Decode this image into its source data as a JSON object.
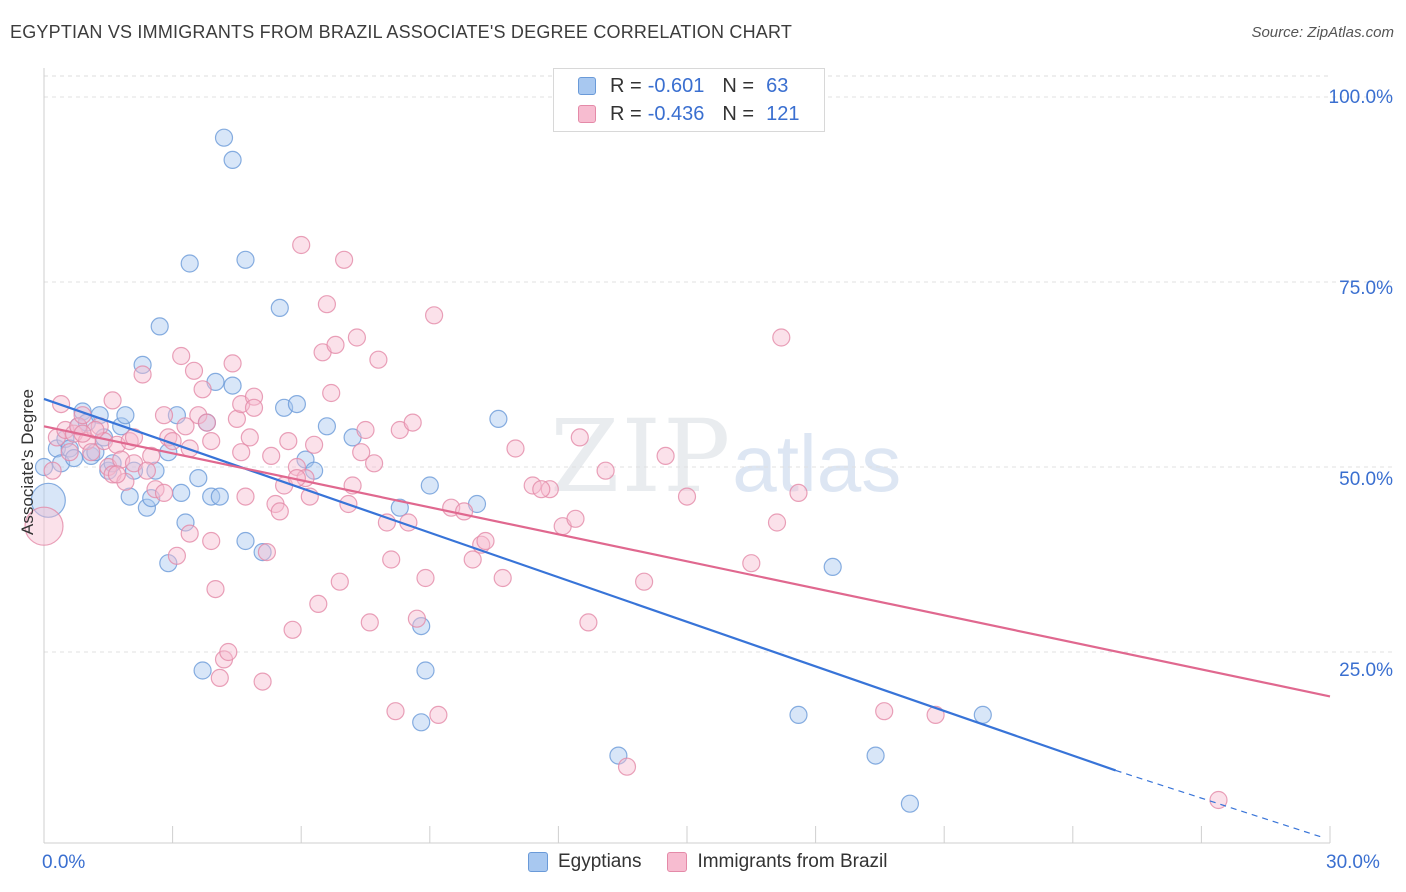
{
  "title": "EGYPTIAN VS IMMIGRANTS FROM BRAZIL ASSOCIATE'S DEGREE CORRELATION CHART",
  "source": "Source: ZipAtlas.com",
  "watermark": {
    "zip": "ZIP",
    "atlas": "atlas"
  },
  "legend": {
    "rows": [
      {
        "r_label": "R =",
        "r_value": "-0.601",
        "n_label": "N =",
        "n_value": "63",
        "color": "#a8c8f0",
        "border": "#6a9ad8"
      },
      {
        "r_label": "R =",
        "r_value": "-0.436",
        "n_label": "N =",
        "n_value": "121",
        "color": "#f7bcd0",
        "border": "#e48aa8"
      }
    ]
  },
  "bottom_legend": [
    "Egyptians",
    "Immigrants from Brazil"
  ],
  "chart_data": {
    "type": "scatter",
    "title": "EGYPTIAN VS IMMIGRANTS FROM BRAZIL ASSOCIATE'S DEGREE CORRELATION CHART",
    "xlabel": "",
    "ylabel": "Associate's Degree",
    "xlim": [
      0,
      30
    ],
    "ylim": [
      0,
      105
    ],
    "x_ticks": [
      "0.0%",
      "30.0%"
    ],
    "y_ticks": [
      {
        "value": 100,
        "label": "100.0%"
      },
      {
        "value": 75,
        "label": "75.0%"
      },
      {
        "value": 50,
        "label": "50.0%"
      },
      {
        "value": 25,
        "label": "25.0%"
      }
    ],
    "grid": true,
    "legend_position": "top-center",
    "series": [
      {
        "name": "Egyptians",
        "color": "#a8c8f0",
        "stroke": "#6a9ad8",
        "trend": {
          "x0": 0,
          "y0": 59.2,
          "x1": 25.0,
          "y1": 9.0,
          "dash_to_x": 29.8,
          "dash_to_y": 0.0,
          "color": "#3874d8"
        },
        "points": [
          [
            0.1,
            45.5
          ],
          [
            0.3,
            52.5
          ],
          [
            0.4,
            50.5
          ],
          [
            0.5,
            53.8
          ],
          [
            0.6,
            52.5
          ],
          [
            0.7,
            51.2
          ],
          [
            0.8,
            55.5
          ],
          [
            0.9,
            57.5
          ],
          [
            1.0,
            56.0
          ],
          [
            1.1,
            51.5
          ],
          [
            1.2,
            52.0
          ],
          [
            1.3,
            57.0
          ],
          [
            1.4,
            54.0
          ],
          [
            1.5,
            49.5
          ],
          [
            1.6,
            50.5
          ],
          [
            1.8,
            55.5
          ],
          [
            1.9,
            57.0
          ],
          [
            2.0,
            46.0
          ],
          [
            2.1,
            49.5
          ],
          [
            2.3,
            63.8
          ],
          [
            2.4,
            44.5
          ],
          [
            2.5,
            45.8
          ],
          [
            2.6,
            49.5
          ],
          [
            2.7,
            69.0
          ],
          [
            2.9,
            52.0
          ],
          [
            2.9,
            37.0
          ],
          [
            3.1,
            57.0
          ],
          [
            3.2,
            46.5
          ],
          [
            3.3,
            42.5
          ],
          [
            3.4,
            77.5
          ],
          [
            3.6,
            48.5
          ],
          [
            3.7,
            22.5
          ],
          [
            3.8,
            56.0
          ],
          [
            3.9,
            46.0
          ],
          [
            4.0,
            61.5
          ],
          [
            4.1,
            46.0
          ],
          [
            4.2,
            94.5
          ],
          [
            4.4,
            91.5
          ],
          [
            4.4,
            61.0
          ],
          [
            4.7,
            78.0
          ],
          [
            4.7,
            40.0
          ],
          [
            5.1,
            38.5
          ],
          [
            5.5,
            71.5
          ],
          [
            5.6,
            58.0
          ],
          [
            5.9,
            58.5
          ],
          [
            6.1,
            51.0
          ],
          [
            6.3,
            49.5
          ],
          [
            6.6,
            55.5
          ],
          [
            7.2,
            54.0
          ],
          [
            8.3,
            44.5
          ],
          [
            8.8,
            15.5
          ],
          [
            8.8,
            28.5
          ],
          [
            8.9,
            22.5
          ],
          [
            9.0,
            47.5
          ],
          [
            10.1,
            45.0
          ],
          [
            10.6,
            56.5
          ],
          [
            13.4,
            11.0
          ],
          [
            17.6,
            16.5
          ],
          [
            18.4,
            36.5
          ],
          [
            19.4,
            11.0
          ],
          [
            20.2,
            4.5
          ],
          [
            21.9,
            16.5
          ],
          [
            0.0,
            50.0
          ]
        ]
      },
      {
        "name": "Immigrants from Brazil",
        "color": "#f7bcd0",
        "stroke": "#e48aa8",
        "trend": {
          "x0": 0,
          "y0": 55.5,
          "x1": 30,
          "y1": 19.0,
          "color": "#e0688f"
        },
        "points": [
          [
            0.0,
            42.0
          ],
          [
            0.2,
            49.5
          ],
          [
            0.3,
            54.0
          ],
          [
            0.4,
            58.5
          ],
          [
            0.5,
            55.0
          ],
          [
            0.6,
            52.0
          ],
          [
            0.7,
            54.5
          ],
          [
            0.8,
            55.5
          ],
          [
            0.9,
            57.0
          ],
          [
            1.0,
            53.5
          ],
          [
            1.1,
            52.0
          ],
          [
            1.3,
            55.5
          ],
          [
            1.4,
            53.5
          ],
          [
            1.5,
            50.0
          ],
          [
            1.6,
            49.0
          ],
          [
            1.7,
            53.0
          ],
          [
            1.8,
            51.0
          ],
          [
            1.9,
            48.0
          ],
          [
            2.0,
            53.5
          ],
          [
            2.1,
            50.5
          ],
          [
            2.3,
            62.5
          ],
          [
            2.5,
            51.5
          ],
          [
            2.6,
            47.0
          ],
          [
            2.8,
            57.0
          ],
          [
            2.9,
            54.0
          ],
          [
            3.0,
            53.5
          ],
          [
            3.1,
            38.0
          ],
          [
            3.2,
            65.0
          ],
          [
            3.3,
            55.5
          ],
          [
            3.4,
            52.5
          ],
          [
            3.5,
            63.0
          ],
          [
            3.6,
            57.0
          ],
          [
            3.7,
            60.5
          ],
          [
            3.8,
            56.0
          ],
          [
            3.9,
            40.0
          ],
          [
            4.0,
            33.5
          ],
          [
            4.1,
            21.5
          ],
          [
            4.2,
            24.0
          ],
          [
            4.3,
            25.0
          ],
          [
            4.4,
            64.0
          ],
          [
            4.5,
            56.5
          ],
          [
            4.6,
            58.5
          ],
          [
            4.7,
            46.0
          ],
          [
            4.8,
            54.0
          ],
          [
            4.9,
            59.5
          ],
          [
            5.1,
            21.0
          ],
          [
            5.2,
            38.5
          ],
          [
            5.3,
            51.5
          ],
          [
            5.4,
            45.0
          ],
          [
            5.5,
            44.0
          ],
          [
            5.7,
            53.5
          ],
          [
            5.8,
            28.0
          ],
          [
            5.9,
            50.0
          ],
          [
            6.0,
            80.0
          ],
          [
            6.1,
            48.5
          ],
          [
            6.2,
            46.0
          ],
          [
            6.4,
            31.5
          ],
          [
            6.5,
            65.5
          ],
          [
            6.6,
            72.0
          ],
          [
            6.7,
            60.0
          ],
          [
            6.8,
            66.5
          ],
          [
            6.9,
            34.5
          ],
          [
            7.0,
            78.0
          ],
          [
            7.2,
            47.5
          ],
          [
            7.3,
            67.5
          ],
          [
            7.4,
            52.0
          ],
          [
            7.5,
            55.0
          ],
          [
            7.6,
            29.0
          ],
          [
            7.8,
            64.5
          ],
          [
            8.0,
            42.5
          ],
          [
            8.1,
            37.5
          ],
          [
            8.2,
            17.0
          ],
          [
            8.3,
            55.0
          ],
          [
            8.5,
            42.5
          ],
          [
            8.7,
            29.5
          ],
          [
            8.9,
            35.0
          ],
          [
            9.1,
            70.5
          ],
          [
            9.2,
            16.5
          ],
          [
            9.5,
            44.5
          ],
          [
            10.0,
            37.5
          ],
          [
            10.2,
            39.5
          ],
          [
            10.3,
            40.0
          ],
          [
            10.7,
            35.0
          ],
          [
            11.0,
            52.5
          ],
          [
            11.4,
            47.5
          ],
          [
            11.8,
            47.0
          ],
          [
            12.1,
            42.0
          ],
          [
            12.4,
            43.0
          ],
          [
            12.5,
            54.0
          ],
          [
            12.7,
            29.0
          ],
          [
            13.1,
            49.5
          ],
          [
            13.6,
            9.5
          ],
          [
            14.0,
            34.5
          ],
          [
            14.5,
            51.5
          ],
          [
            15.0,
            46.0
          ],
          [
            16.5,
            37.0
          ],
          [
            17.1,
            42.5
          ],
          [
            17.2,
            67.5
          ],
          [
            17.6,
            46.5
          ],
          [
            19.6,
            17.0
          ],
          [
            20.8,
            16.5
          ],
          [
            27.4,
            5.0
          ],
          [
            1.2,
            55.0
          ],
          [
            2.8,
            46.5
          ],
          [
            3.4,
            41.0
          ],
          [
            4.9,
            58.0
          ],
          [
            5.6,
            47.5
          ],
          [
            6.3,
            53.0
          ],
          [
            7.1,
            45.0
          ],
          [
            8.6,
            56.0
          ],
          [
            9.8,
            44.0
          ],
          [
            11.6,
            47.0
          ],
          [
            1.6,
            59.0
          ],
          [
            2.4,
            49.5
          ],
          [
            3.9,
            53.5
          ],
          [
            4.6,
            52.0
          ],
          [
            5.9,
            48.5
          ],
          [
            7.7,
            50.5
          ],
          [
            2.1,
            54.0
          ],
          [
            0.9,
            54.5
          ],
          [
            1.7,
            49.0
          ]
        ]
      }
    ]
  }
}
